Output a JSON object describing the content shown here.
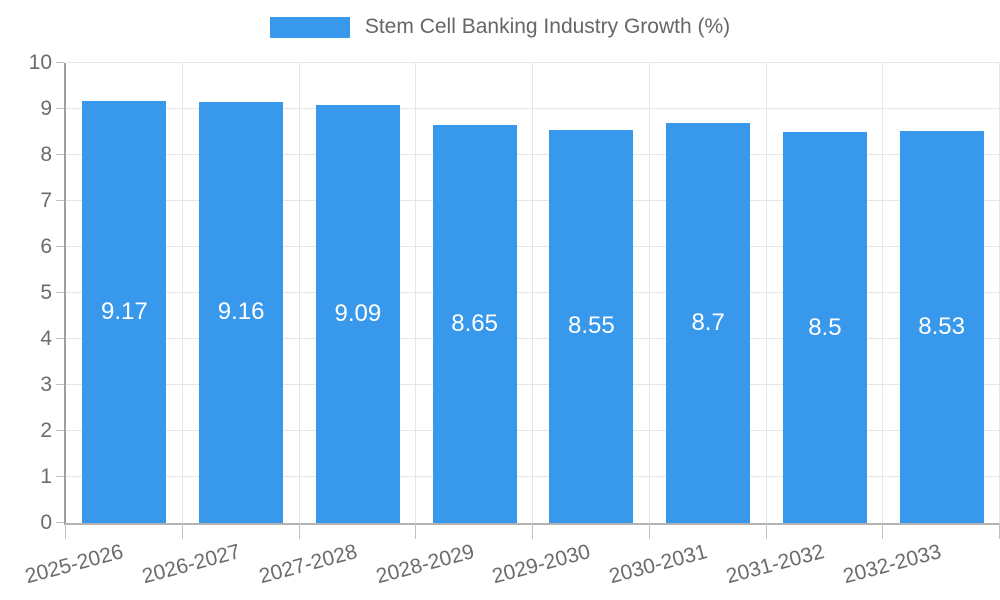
{
  "chart_data": {
    "type": "bar",
    "title": "Stem Cell Banking Industry Growth (%)",
    "categories": [
      "2025-2026",
      "2026-2027",
      "2027-2028",
      "2028-2029",
      "2029-2030",
      "2030-2031",
      "2031-2032",
      "2032-2033"
    ],
    "values": [
      9.17,
      9.16,
      9.09,
      8.65,
      8.55,
      8.7,
      8.5,
      8.53
    ],
    "value_labels": [
      "9.17",
      "9.16",
      "9.09",
      "8.65",
      "8.55",
      "8.7",
      "8.5",
      "8.53"
    ],
    "ytick_labels": [
      "0",
      "1",
      "2",
      "3",
      "4",
      "5",
      "6",
      "7",
      "8",
      "9",
      "10"
    ],
    "xlabel": "",
    "ylabel": "",
    "ylim": [
      0,
      10
    ],
    "ytick_step": 1,
    "grid": true,
    "legend_position": "top",
    "bar_color": "#3899ec",
    "bar_label_color": "#ffffff",
    "grid_color": "#e6e6e6",
    "tick_color": "#c2c2c2",
    "axis_text_color": "#6b6b6b",
    "title_color": "#666666"
  }
}
